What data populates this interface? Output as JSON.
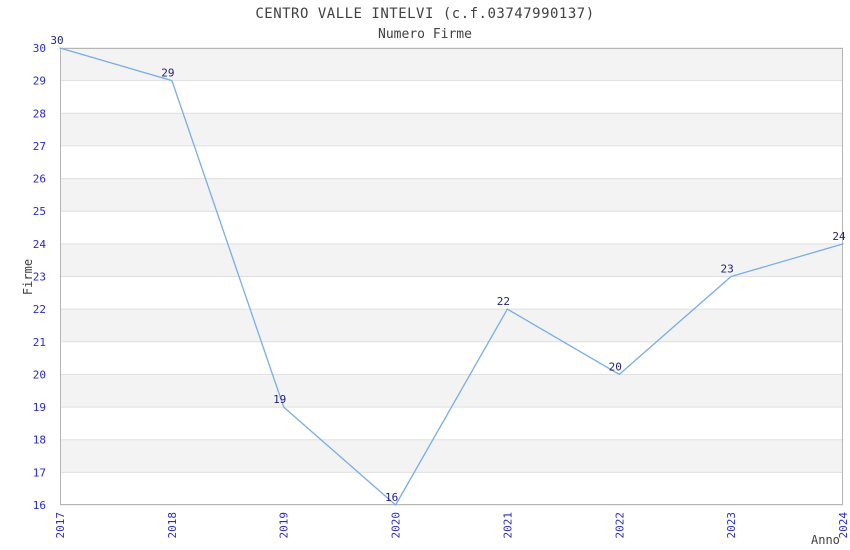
{
  "chart_data": {
    "type": "line",
    "title": "CENTRO VALLE INTELVI (c.f.03747990137)",
    "subtitle": "Numero Firme",
    "xlabel": "Anno",
    "ylabel": "Firme",
    "x": [
      "2017",
      "2018",
      "2019",
      "2020",
      "2021",
      "2022",
      "2023",
      "2024"
    ],
    "values": [
      30,
      29,
      19,
      16,
      22,
      20,
      23,
      24
    ],
    "point_labels": [
      "30",
      "29",
      "19",
      "16",
      "22",
      "20",
      "23",
      "24"
    ],
    "ylim": [
      16,
      30
    ],
    "y_ticks": [
      16,
      17,
      18,
      19,
      20,
      21,
      22,
      23,
      24,
      25,
      26,
      27,
      28,
      29,
      30
    ],
    "grid": "horizontal",
    "band_fill": "alternating gray/white rows, gray first from top",
    "legend": "none",
    "colors": {
      "line": "#7AACE8",
      "tick_label": "#2A2ACC",
      "point_label": "#1F1F78",
      "text": "#404040",
      "band_gray": "#F3F3F3",
      "band_white": "#FFFFFF",
      "gridline": "#E0E0E0",
      "plot_border": "#B5B5B5",
      "background": "#FFFFFF"
    }
  }
}
